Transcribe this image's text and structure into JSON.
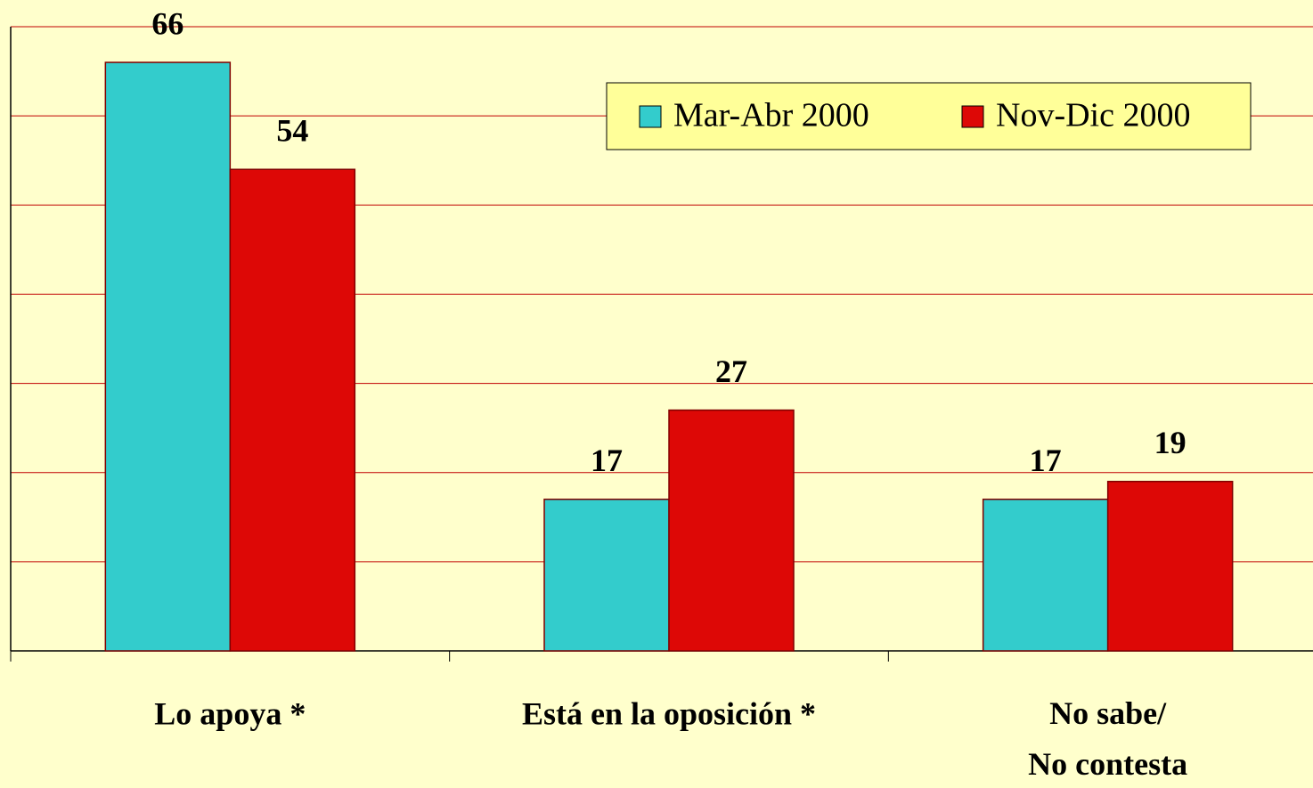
{
  "chart_data": {
    "type": "bar",
    "categories": [
      "Lo apoya *",
      "Está en la oposición *",
      "No sabe/\nNo contesta"
    ],
    "series": [
      {
        "name": "Mar-Abr 2000",
        "color": "#33cccc",
        "values": [
          66,
          17,
          17
        ]
      },
      {
        "name": "Nov-Dic 2000",
        "color": "#dd0806",
        "values": [
          54,
          27,
          19
        ]
      }
    ],
    "ylim": [
      0,
      70
    ],
    "yticks": [
      0,
      10,
      20,
      30,
      40,
      50,
      60,
      70
    ],
    "grid": true,
    "legend": "top-right"
  }
}
